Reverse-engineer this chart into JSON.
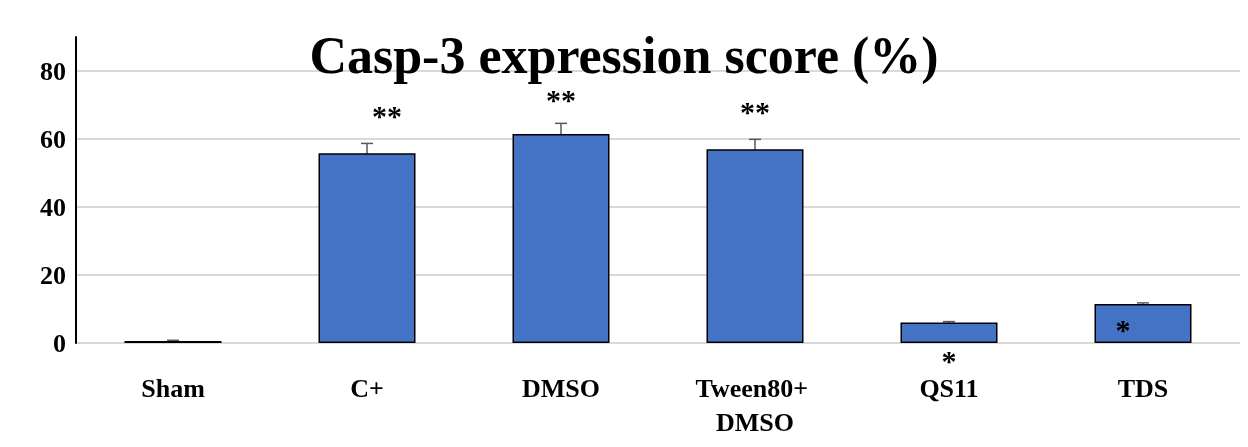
{
  "chart_data": {
    "type": "bar",
    "title": "Casp-3 expression score (%)",
    "categories": [
      "Sham",
      "C+",
      "DMSO",
      "Tween80+ DMSO",
      "QS11",
      "TDS"
    ],
    "values": [
      0.6,
      55.8,
      61.5,
      57.0,
      6.0,
      11.5
    ],
    "errors": [
      0.2,
      2.9,
      3.1,
      2.9,
      0.3,
      0.3
    ],
    "color": "#4472c4",
    "ylim": [
      0,
      90
    ],
    "yticks": [
      0,
      20,
      40,
      60,
      80
    ],
    "grid": "y",
    "annotations": [
      "**",
      "**",
      "**",
      "*",
      "*"
    ]
  }
}
